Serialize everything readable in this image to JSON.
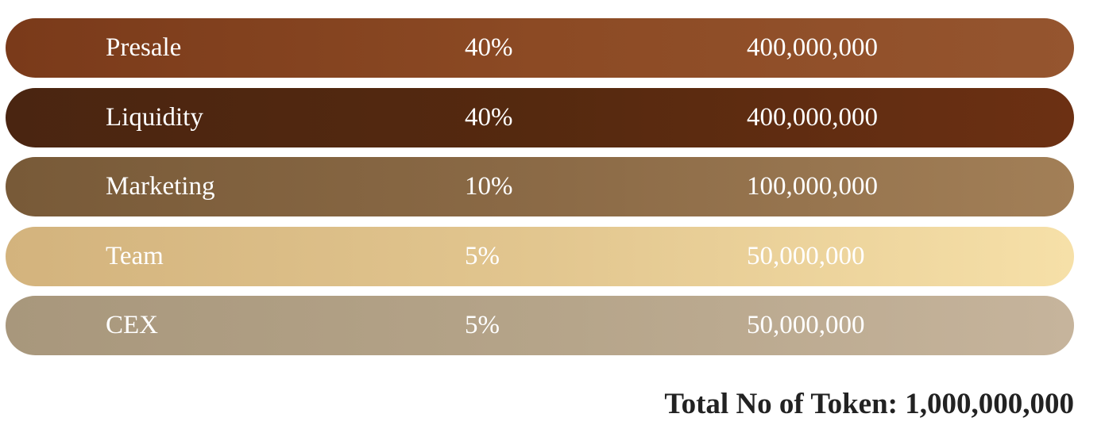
{
  "table": {
    "rows": [
      {
        "name": "Presale",
        "share": "40%",
        "amount": "400,000,000"
      },
      {
        "name": "Liquidity",
        "share": "40%",
        "amount": "400,000,000"
      },
      {
        "name": "Marketing",
        "share": "10%",
        "amount": "100,000,000"
      },
      {
        "name": "Team",
        "share": "5%",
        "amount": "50,000,000"
      },
      {
        "name": "CEX",
        "share": "5%",
        "amount": "50,000,000"
      }
    ]
  },
  "total": "Total No of Token: 1,000,000,000"
}
